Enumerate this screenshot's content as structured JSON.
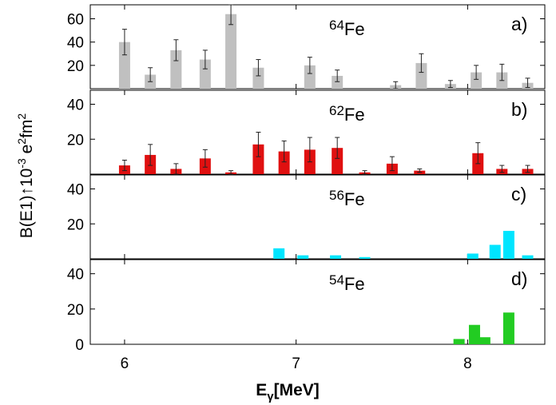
{
  "chart_data": {
    "type": "bar",
    "xlabel": "E",
    "xlabel_sub": "γ",
    "xlabel_unit": "[MeV]",
    "ylabel": "B(E1)↑10",
    "ylabel_exp1": "-3",
    "ylabel_mid": " e",
    "ylabel_exp2": "2",
    "ylabel_tail": "fm",
    "ylabel_exp3": "2",
    "xlim": [
      5.8,
      8.45
    ],
    "xticks": [
      "6",
      "7",
      "8"
    ],
    "panels": [
      {
        "label": "a)",
        "isotope_mass": "64",
        "isotope_symbol": "Fe",
        "ylim": [
          0,
          72
        ],
        "yticks": [
          "20",
          "40",
          "60"
        ],
        "color": "#c0c0c0",
        "error_bars": true,
        "x": [
          6.0,
          6.15,
          6.3,
          6.47,
          6.62,
          6.78,
          7.08,
          7.24,
          7.58,
          7.73,
          7.9,
          8.05,
          8.2,
          8.35
        ],
        "values": [
          40,
          12,
          33,
          25,
          64,
          18,
          20,
          11,
          3,
          22,
          4,
          14,
          14,
          5
        ],
        "errors": [
          11,
          6,
          9,
          8,
          9,
          7,
          7,
          5,
          3,
          8,
          3,
          6,
          7,
          4
        ]
      },
      {
        "label": "b)",
        "isotope_mass": "62",
        "isotope_symbol": "Fe",
        "ylim": [
          0,
          48
        ],
        "yticks": [
          "20",
          "40"
        ],
        "color": "#e01010",
        "error_bars": true,
        "x": [
          6.0,
          6.15,
          6.3,
          6.47,
          6.62,
          6.78,
          6.93,
          7.08,
          7.24,
          7.4,
          7.56,
          7.72,
          8.06,
          8.2,
          8.35
        ],
        "values": [
          5,
          11,
          3,
          9,
          1,
          17,
          13,
          14,
          15,
          1,
          6,
          2,
          12,
          3,
          3
        ],
        "errors": [
          3,
          6,
          3,
          5,
          1,
          7,
          6,
          7,
          6,
          1,
          4,
          1,
          6,
          2,
          2
        ]
      },
      {
        "label": "c)",
        "isotope_mass": "56",
        "isotope_symbol": "Fe",
        "ylim": [
          0,
          48
        ],
        "yticks": [
          "20",
          "40"
        ],
        "color": "#00e5ff",
        "error_bars": false,
        "x": [
          6.9,
          7.04,
          7.23,
          7.4,
          8.03,
          8.16,
          8.24,
          8.35
        ],
        "values": [
          6,
          2,
          2,
          1,
          3,
          8,
          16,
          2
        ],
        "errors": []
      },
      {
        "label": "d)",
        "isotope_mass": "54",
        "isotope_symbol": "Fe",
        "ylim": [
          0,
          48
        ],
        "yticks": [
          "0",
          "20",
          "40"
        ],
        "color": "#22cc22",
        "error_bars": false,
        "x": [
          7.95,
          8.04,
          8.1,
          8.24
        ],
        "values": [
          3,
          11,
          4,
          18
        ],
        "errors": []
      }
    ]
  }
}
